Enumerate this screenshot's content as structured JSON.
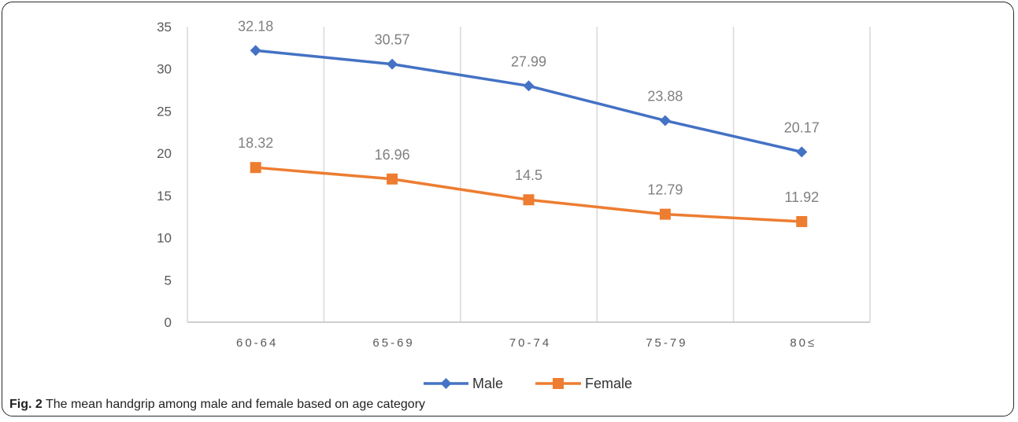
{
  "figure": {
    "caption_label": "Fig. 2",
    "caption_text": " The mean handgrip among male and female based on age category"
  },
  "chart_data": {
    "type": "line",
    "categories": [
      "60-64",
      "65-69",
      "70-74",
      "75-79",
      "80≤"
    ],
    "ylim": [
      0,
      35
    ],
    "yticks": [
      0,
      5,
      10,
      15,
      20,
      25,
      30,
      35
    ],
    "grid": "vertical",
    "legend_position": "bottom",
    "series": [
      {
        "name": "Male",
        "values": [
          32.18,
          30.57,
          27.99,
          23.88,
          20.17
        ],
        "labels": [
          "32.18",
          "30.57",
          "27.99",
          "23.88",
          "20.17"
        ],
        "color": "#4472C4",
        "marker": "diamond"
      },
      {
        "name": "Female",
        "values": [
          18.32,
          16.96,
          14.5,
          12.79,
          11.92
        ],
        "labels": [
          "18.32",
          "16.96",
          "14.5",
          "12.79",
          "11.92"
        ],
        "color": "#ED7D31",
        "marker": "square"
      }
    ]
  }
}
